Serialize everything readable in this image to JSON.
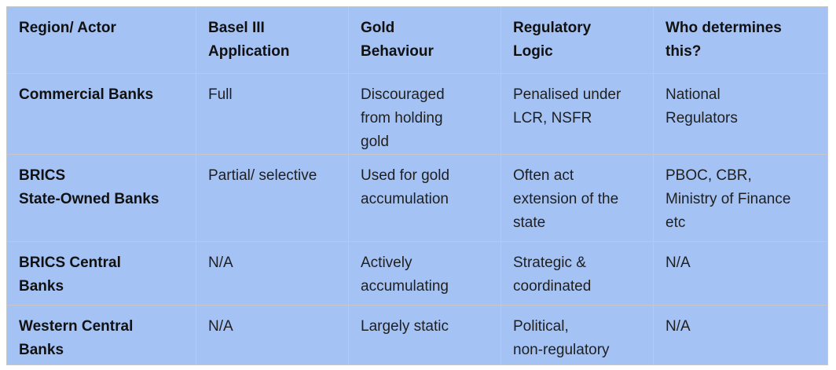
{
  "table": {
    "header": [
      [
        "Region/ Actor"
      ],
      [
        "Basel III",
        "Application"
      ],
      [
        "Gold",
        "Behaviour"
      ],
      [
        "Regulatory",
        "Logic"
      ],
      [
        "Who determines",
        "this?"
      ]
    ],
    "rows": [
      [
        [
          "Commercial Banks"
        ],
        [
          "Full"
        ],
        [
          "Discouraged",
          "from holding",
          "gold"
        ],
        [
          "Penalised under",
          "LCR, NSFR"
        ],
        [
          "National",
          "Regulators"
        ]
      ],
      [
        [
          "BRICS",
          "State-Owned Banks"
        ],
        [
          "Partial/ selective"
        ],
        [
          "Used for gold",
          "accumulation"
        ],
        [
          "Often act",
          "extension of the",
          "state"
        ],
        [
          "PBOC, CBR,",
          "Ministry of Finance",
          "etc"
        ]
      ],
      [
        [
          "BRICS Central",
          "Banks"
        ],
        [
          "N/A"
        ],
        [
          "Actively",
          "accumulating"
        ],
        [
          "Strategic &",
          "coordinated"
        ],
        [
          "N/A"
        ]
      ],
      [
        [
          "Western Central",
          "Banks"
        ],
        [
          "N/A"
        ],
        [
          "Largely static"
        ],
        [
          "Political,",
          "non-regulatory"
        ],
        [
          "N/A"
        ]
      ]
    ]
  }
}
